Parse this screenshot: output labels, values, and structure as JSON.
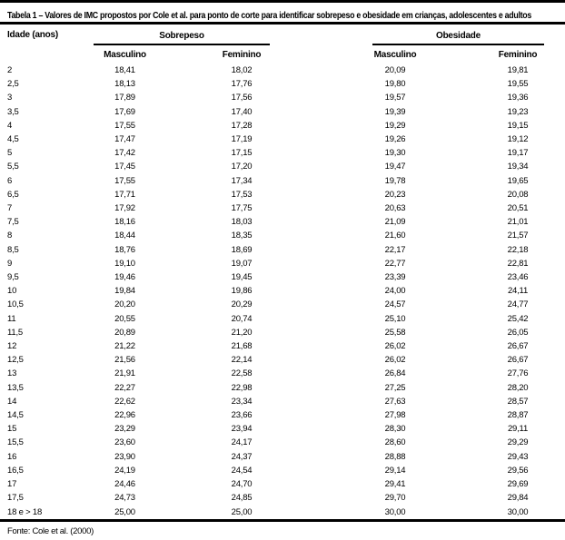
{
  "table": {
    "title": "Tabela 1 – Valores de IMC propostos por Cole et al. para ponto de corte para identificar sobrepeso e obesidade em crianças, adolescentes e adultos",
    "columns": {
      "age_label": "Idade (anos)",
      "group1": "Sobrepeso",
      "group2": "Obesidade",
      "sub_male": "Masculino",
      "sub_female": "Feminino"
    },
    "rows": [
      {
        "age": "2",
        "sm": "18,41",
        "sf": "18,02",
        "om": "20,09",
        "of": "19,81"
      },
      {
        "age": "2,5",
        "sm": "18,13",
        "sf": "17,76",
        "om": "19,80",
        "of": "19,55"
      },
      {
        "age": "3",
        "sm": "17,89",
        "sf": "17,56",
        "om": "19,57",
        "of": "19,36"
      },
      {
        "age": "3,5",
        "sm": "17,69",
        "sf": "17,40",
        "om": "19,39",
        "of": "19,23"
      },
      {
        "age": "4",
        "sm": "17,55",
        "sf": "17,28",
        "om": "19,29",
        "of": "19,15"
      },
      {
        "age": "4,5",
        "sm": "17,47",
        "sf": "17,19",
        "om": "19,26",
        "of": "19,12"
      },
      {
        "age": "5",
        "sm": "17,42",
        "sf": "17,15",
        "om": "19,30",
        "of": "19,17"
      },
      {
        "age": "5,5",
        "sm": "17,45",
        "sf": "17,20",
        "om": "19,47",
        "of": "19,34"
      },
      {
        "age": "6",
        "sm": "17,55",
        "sf": "17,34",
        "om": "19,78",
        "of": "19,65"
      },
      {
        "age": "6,5",
        "sm": "17,71",
        "sf": "17,53",
        "om": "20,23",
        "of": "20,08"
      },
      {
        "age": "7",
        "sm": "17,92",
        "sf": "17,75",
        "om": "20,63",
        "of": "20,51"
      },
      {
        "age": "7,5",
        "sm": "18,16",
        "sf": "18,03",
        "om": "21,09",
        "of": "21,01"
      },
      {
        "age": "8",
        "sm": "18,44",
        "sf": "18,35",
        "om": "21,60",
        "of": "21,57"
      },
      {
        "age": "8,5",
        "sm": "18,76",
        "sf": "18,69",
        "om": "22,17",
        "of": "22,18"
      },
      {
        "age": "9",
        "sm": "19,10",
        "sf": "19,07",
        "om": "22,77",
        "of": "22,81"
      },
      {
        "age": "9,5",
        "sm": "19,46",
        "sf": "19,45",
        "om": "23,39",
        "of": "23,46"
      },
      {
        "age": "10",
        "sm": "19,84",
        "sf": "19,86",
        "om": "24,00",
        "of": "24,11"
      },
      {
        "age": "10,5",
        "sm": "20,20",
        "sf": "20,29",
        "om": "24,57",
        "of": "24,77"
      },
      {
        "age": "11",
        "sm": "20,55",
        "sf": "20,74",
        "om": "25,10",
        "of": "25,42"
      },
      {
        "age": "11,5",
        "sm": "20,89",
        "sf": "21,20",
        "om": "25,58",
        "of": "26,05"
      },
      {
        "age": "12",
        "sm": "21,22",
        "sf": "21,68",
        "om": "26,02",
        "of": "26,67"
      },
      {
        "age": "12,5",
        "sm": "21,56",
        "sf": "22,14",
        "om": "26,02",
        "of": "26,67"
      },
      {
        "age": "13",
        "sm": "21,91",
        "sf": "22,58",
        "om": "26,84",
        "of": "27,76"
      },
      {
        "age": "13,5",
        "sm": "22,27",
        "sf": "22,98",
        "om": "27,25",
        "of": "28,20"
      },
      {
        "age": "14",
        "sm": "22,62",
        "sf": "23,34",
        "om": "27,63",
        "of": "28,57"
      },
      {
        "age": "14,5",
        "sm": "22,96",
        "sf": "23,66",
        "om": "27,98",
        "of": "28,87"
      },
      {
        "age": "15",
        "sm": "23,29",
        "sf": "23,94",
        "om": "28,30",
        "of": "29,11"
      },
      {
        "age": "15,5",
        "sm": "23,60",
        "sf": "24,17",
        "om": "28,60",
        "of": "29,29"
      },
      {
        "age": "16",
        "sm": "23,90",
        "sf": "24,37",
        "om": "28,88",
        "of": "29,43"
      },
      {
        "age": "16,5",
        "sm": "24,19",
        "sf": "24,54",
        "om": "29,14",
        "of": "29,56"
      },
      {
        "age": "17",
        "sm": "24,46",
        "sf": "24,70",
        "om": "29,41",
        "of": "29,69"
      },
      {
        "age": "17,5",
        "sm": "24,73",
        "sf": "24,85",
        "om": "29,70",
        "of": "29,84"
      },
      {
        "age": "18 e > 18",
        "sm": "25,00",
        "sf": "25,00",
        "om": "30,00",
        "of": "30,00"
      }
    ],
    "source": "Fonte: Cole et al. (2000)"
  }
}
